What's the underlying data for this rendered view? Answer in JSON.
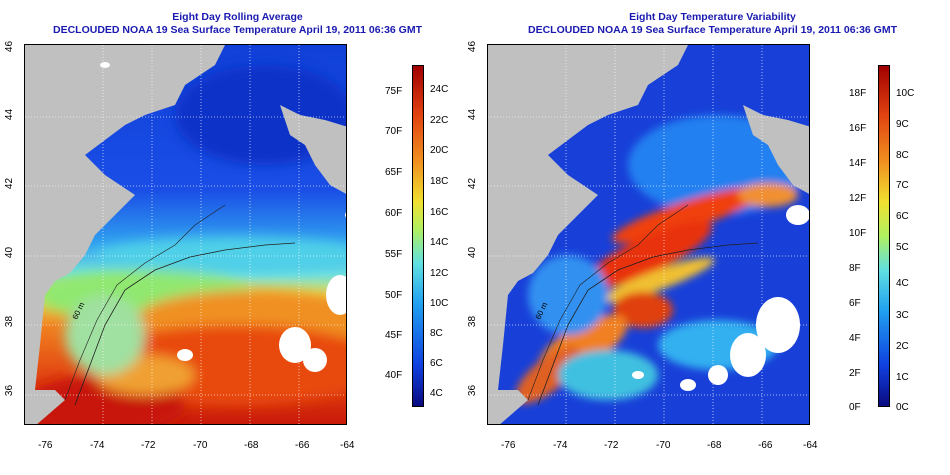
{
  "left_panel": {
    "title": "Eight Day Rolling Average",
    "subtitle": "DECLOUDED NOAA 19 Sea Surface Temperature April 19, 2011 06:36 GMT",
    "colorbar_f": [
      "75F",
      "70F",
      "65F",
      "60F",
      "55F",
      "50F",
      "45F",
      "40F"
    ],
    "colorbar_c": [
      "24C",
      "22C",
      "20C",
      "18C",
      "16C",
      "14C",
      "12C",
      "10C",
      "8C",
      "6C",
      "4C"
    ],
    "contour_label": "60 m"
  },
  "right_panel": {
    "title": "Eight Day Temperature Variability",
    "subtitle": "DECLOUDED NOAA 19 Sea Surface Temperature April 19, 2011 06:36 GMT",
    "colorbar_f": [
      "18F",
      "16F",
      "14F",
      "12F",
      "10F",
      "8F",
      "6F",
      "4F",
      "2F",
      "0F"
    ],
    "colorbar_c": [
      "10C",
      "9C",
      "8C",
      "7C",
      "6C",
      "5C",
      "4C",
      "3C",
      "2C",
      "1C",
      "0C"
    ],
    "contour_label": "60 m"
  },
  "axes": {
    "lat_labels": [
      "36",
      "38",
      "40",
      "42",
      "44",
      "46"
    ],
    "lon_labels": [
      "-76",
      "-74",
      "-72",
      "-70",
      "-68",
      "-66",
      "-64"
    ]
  },
  "colors": {
    "title": "#1a1ab0",
    "land": "#c0c0c0",
    "cloud": "#ffffff"
  }
}
